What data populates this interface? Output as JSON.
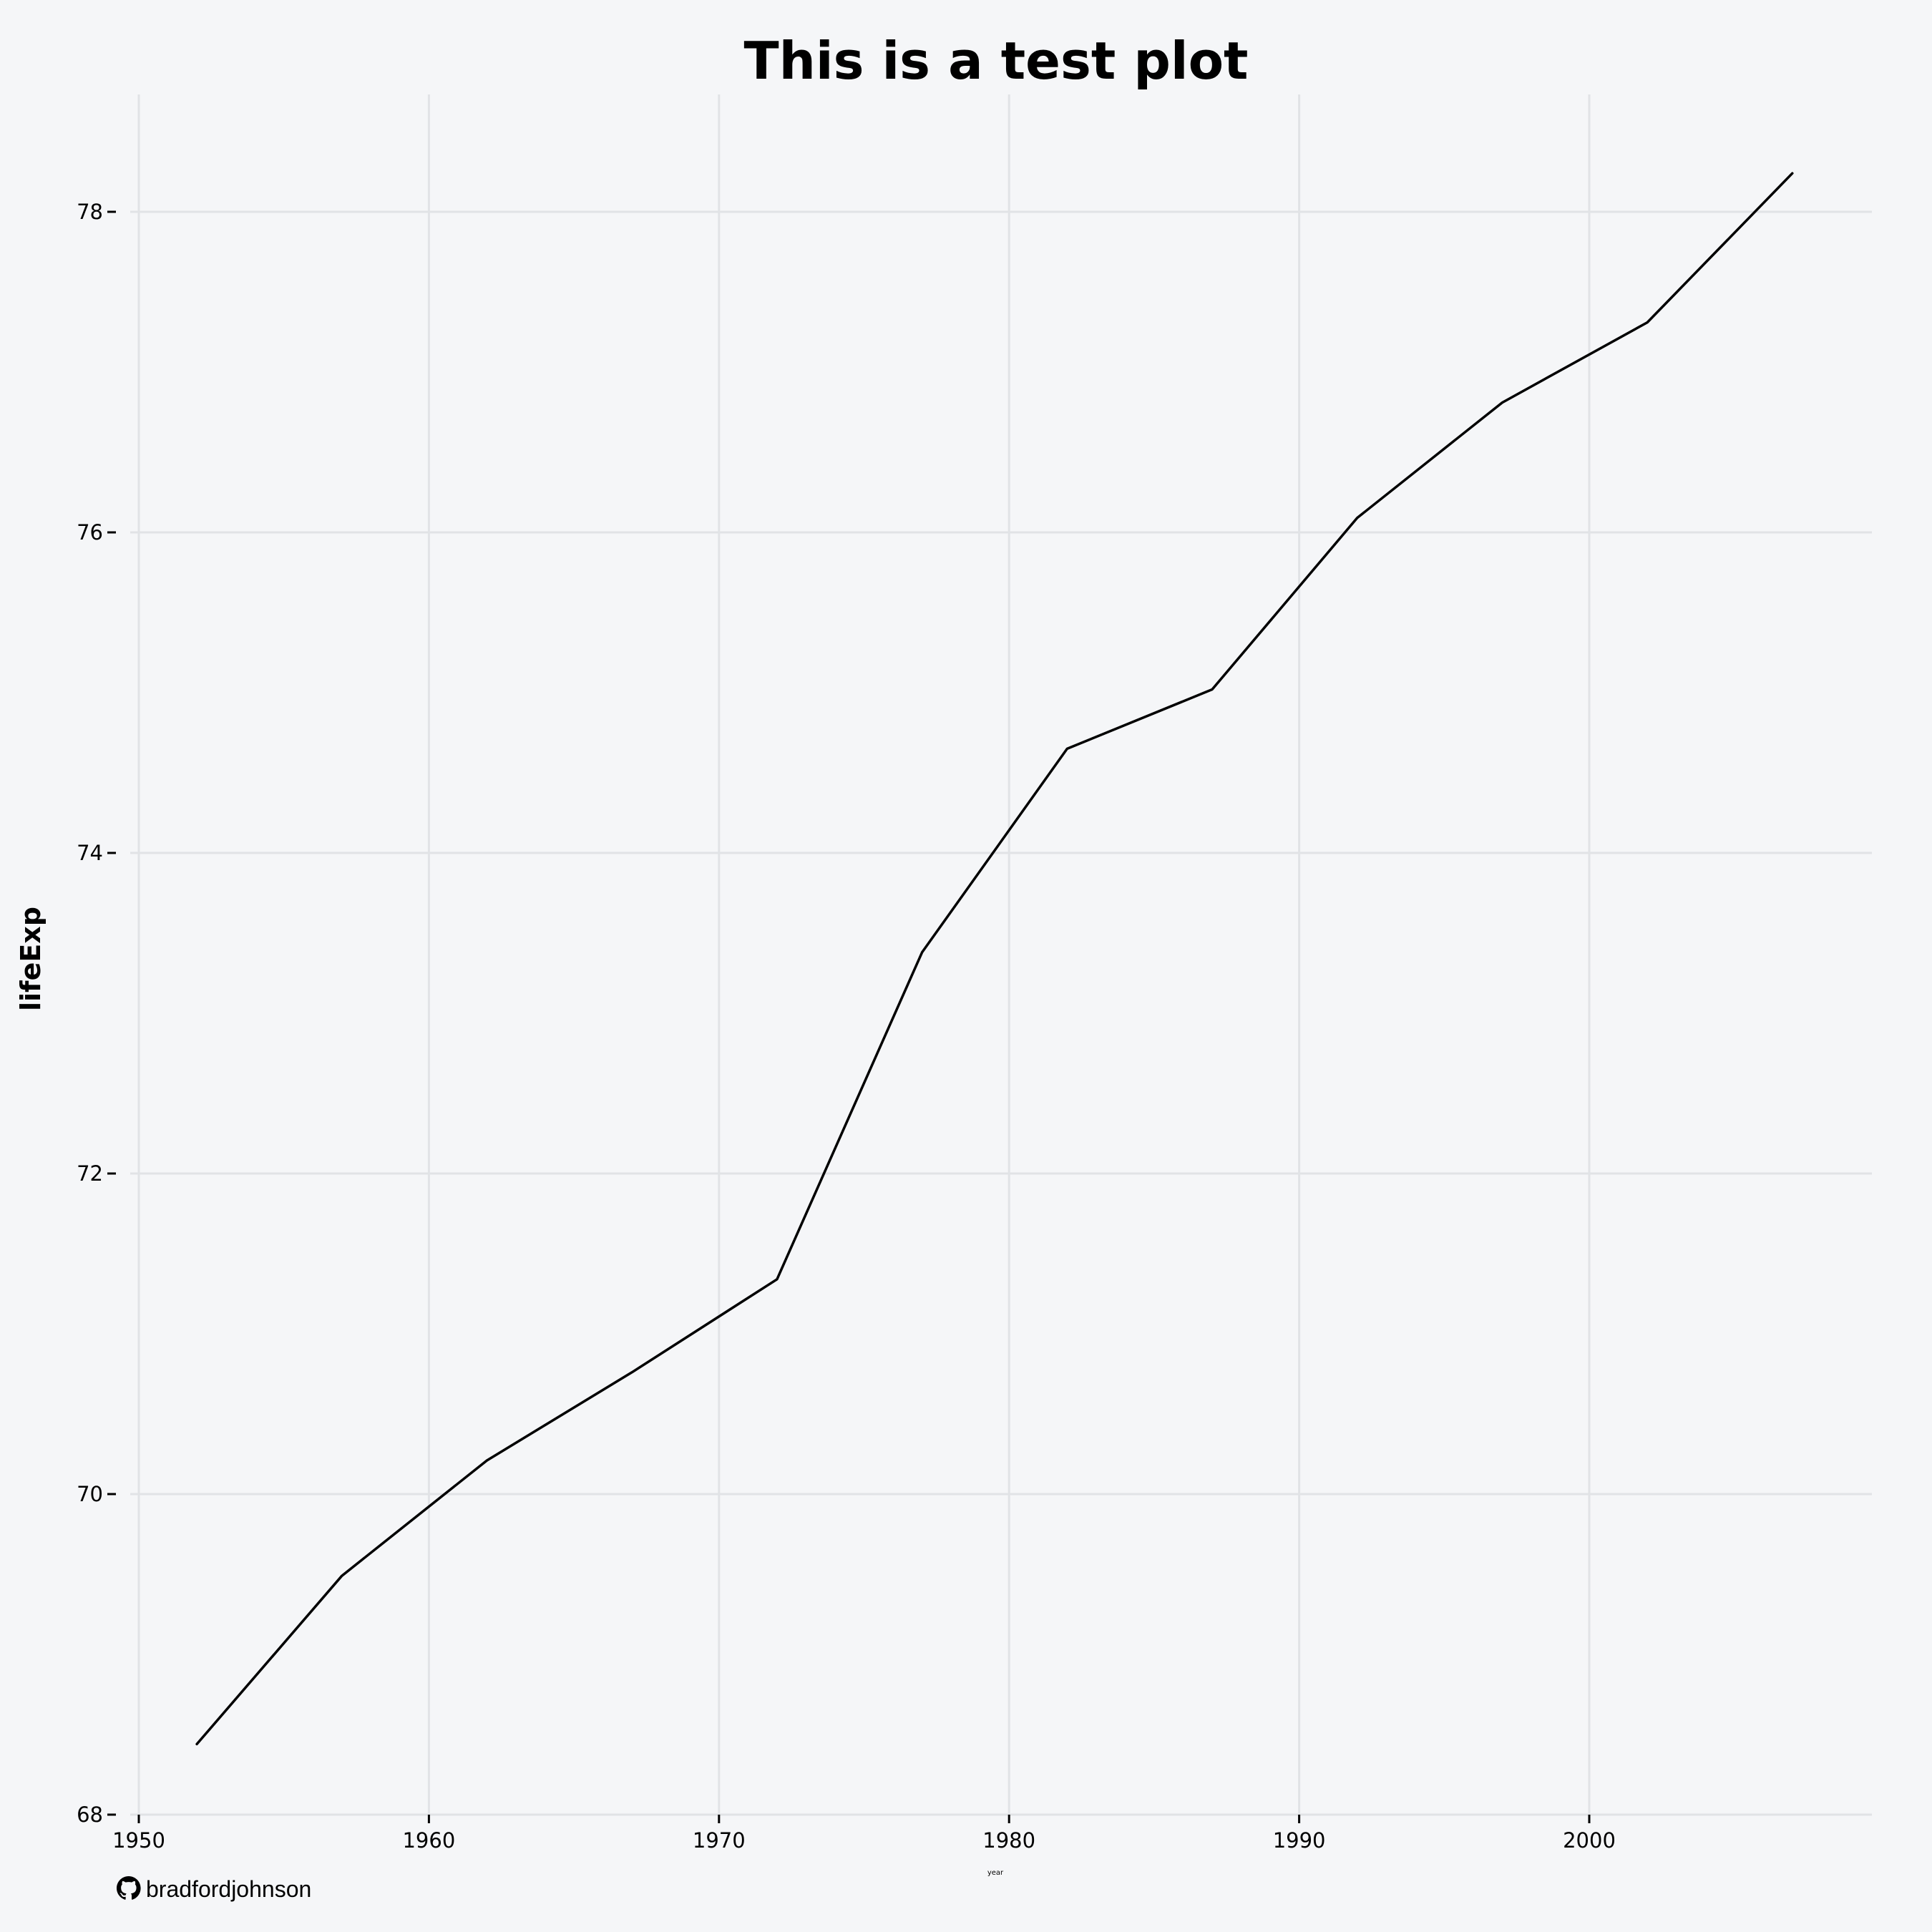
{
  "chart_data": {
    "type": "line",
    "title": "This is a test plot",
    "xlabel": "year",
    "ylabel": "lifeExp",
    "xlim": [
      1950,
      2009
    ],
    "ylim": [
      68,
      78.7
    ],
    "x_ticks": [
      1950,
      1960,
      1970,
      1980,
      1990,
      2000
    ],
    "y_ticks": [
      68,
      70,
      72,
      74,
      76,
      78
    ],
    "grid": true,
    "legend": "none",
    "line_color": "#000000",
    "series": [
      {
        "x": [
          1952,
          1957,
          1962,
          1967,
          1972,
          1977,
          1982,
          1987,
          1992,
          1997,
          2002,
          2007
        ],
        "y": [
          68.44,
          69.49,
          70.21,
          70.76,
          71.34,
          73.38,
          74.65,
          75.02,
          76.09,
          76.81,
          77.31,
          78.24
        ]
      }
    ]
  },
  "caption": {
    "icon": "github-icon",
    "text": "bradfordjohnson"
  },
  "colors": {
    "background": "#f5f6f8",
    "grid": "#e1e3e6"
  }
}
